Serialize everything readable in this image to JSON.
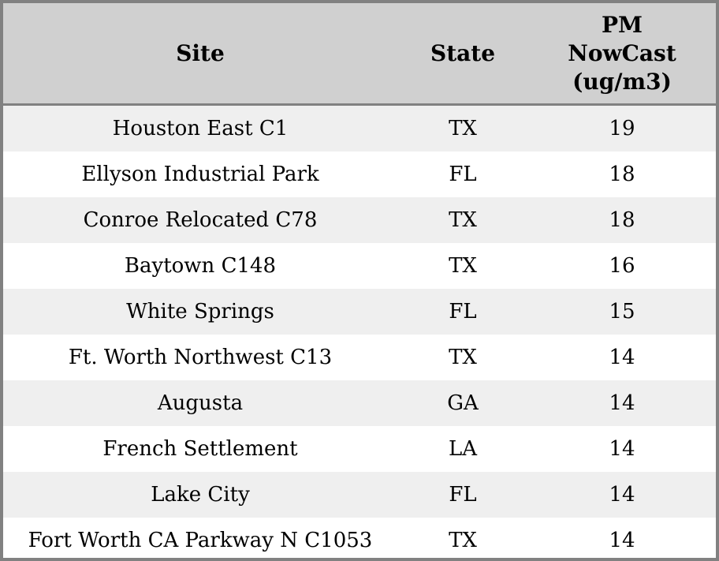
{
  "colors": {
    "border_color": "#818181",
    "header_bg": "#d0d0d0",
    "row_alt_bg": "#efefef",
    "text_color": "#000000"
  },
  "table": {
    "columns": [
      {
        "label": "Site",
        "lines": [
          "Site"
        ]
      },
      {
        "label": "State",
        "lines": [
          "State"
        ]
      },
      {
        "label": "PM NowCast (ug/m3)",
        "lines": [
          "PM",
          "NowCast",
          "(ug/m3)"
        ]
      }
    ],
    "rows": [
      {
        "site": "Houston East C1",
        "state": "TX",
        "pm": "19"
      },
      {
        "site": "Ellyson Industrial Park",
        "state": "FL",
        "pm": "18"
      },
      {
        "site": "Conroe Relocated C78",
        "state": "TX",
        "pm": "18"
      },
      {
        "site": "Baytown C148",
        "state": "TX",
        "pm": "16"
      },
      {
        "site": "White Springs",
        "state": "FL",
        "pm": "15"
      },
      {
        "site": "Ft. Worth Northwest C13",
        "state": "TX",
        "pm": "14"
      },
      {
        "site": "Augusta",
        "state": "GA",
        "pm": "14"
      },
      {
        "site": "French Settlement",
        "state": "LA",
        "pm": "14"
      },
      {
        "site": "Lake City",
        "state": "FL",
        "pm": "14"
      },
      {
        "site": "Fort Worth CA Parkway N C1053",
        "state": "TX",
        "pm": "14"
      }
    ]
  },
  "chart_data": {
    "type": "table",
    "columns": [
      "Site",
      "State",
      "PM NowCast (ug/m3)"
    ],
    "rows": [
      [
        "Houston East C1",
        "TX",
        19
      ],
      [
        "Ellyson Industrial Park",
        "FL",
        18
      ],
      [
        "Conroe Relocated C78",
        "TX",
        18
      ],
      [
        "Baytown C148",
        "TX",
        16
      ],
      [
        "White Springs",
        "FL",
        15
      ],
      [
        "Ft. Worth Northwest C13",
        "TX",
        14
      ],
      [
        "Augusta",
        "GA",
        14
      ],
      [
        "French Settlement",
        "LA",
        14
      ],
      [
        "Lake City",
        "FL",
        14
      ],
      [
        "Fort Worth CA Parkway N C1053",
        "TX",
        14
      ]
    ]
  }
}
